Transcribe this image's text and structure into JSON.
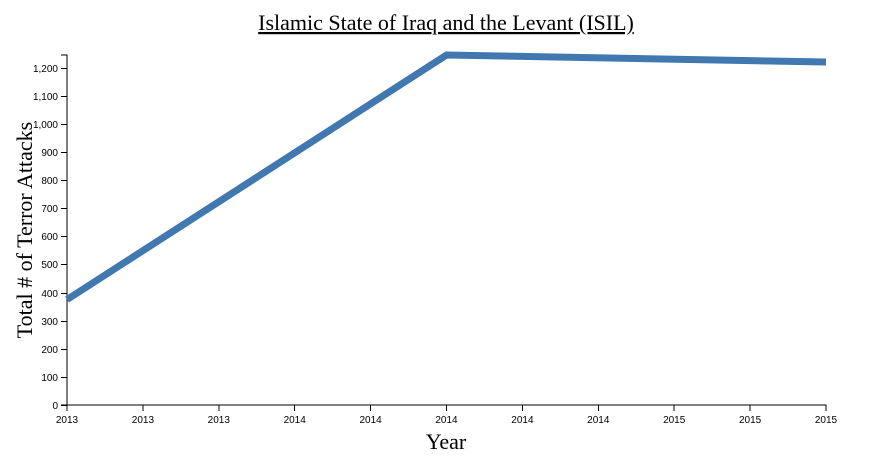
{
  "chart_data": {
    "type": "line",
    "title": "Islamic State of Iraq and the Levant (ISIL)",
    "xlabel": "Year",
    "ylabel": "Total # of Terror Attacks",
    "x": [
      "2013",
      "2014",
      "2015"
    ],
    "x_tick_labels": [
      "2013",
      "2013",
      "2013",
      "2014",
      "2014",
      "2014",
      "2014",
      "2014",
      "2015",
      "2015",
      "2015"
    ],
    "series": [
      {
        "values": [
          375,
          1245,
          1220
        ]
      }
    ],
    "ylim": [
      0,
      1245
    ],
    "y_ticks": [
      0,
      100,
      200,
      300,
      400,
      500,
      600,
      700,
      800,
      900,
      1000,
      1100,
      1200
    ],
    "y_tick_labels": [
      "0",
      "100",
      "200",
      "300",
      "400",
      "500",
      "600",
      "700",
      "800",
      "900",
      "1,000",
      "1,100",
      "1,200"
    ],
    "grid": false,
    "legend": "none",
    "colors": {
      "line": "#4178b0"
    }
  }
}
